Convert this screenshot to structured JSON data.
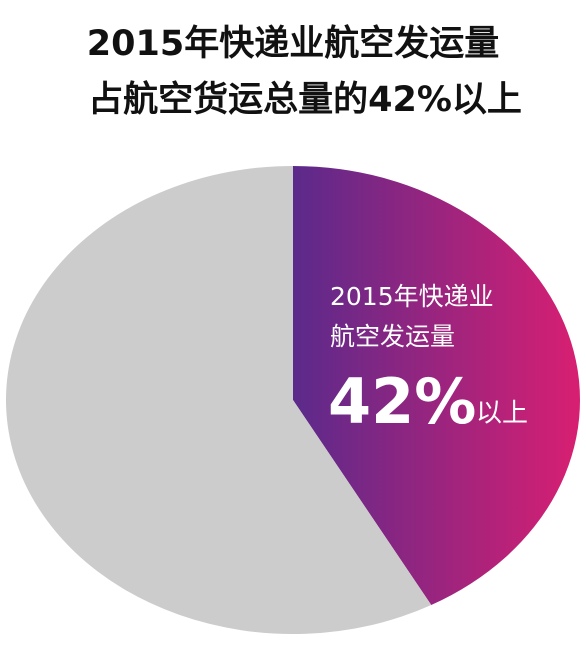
{
  "chart_data": {
    "type": "pie",
    "title": [
      "2015年快递业航空发运量",
      "占航空货运总量的42%以上"
    ],
    "categories": [
      [
        "2015年快递业",
        "航空发运量"
      ],
      null
    ],
    "values": [
      42,
      58
    ],
    "value_labels": [
      "42%",
      null
    ],
    "annotation": "以上",
    "colors": [
      "#d81f72",
      "#cccccc"
    ],
    "gradient_start": "#5b2a8b"
  }
}
